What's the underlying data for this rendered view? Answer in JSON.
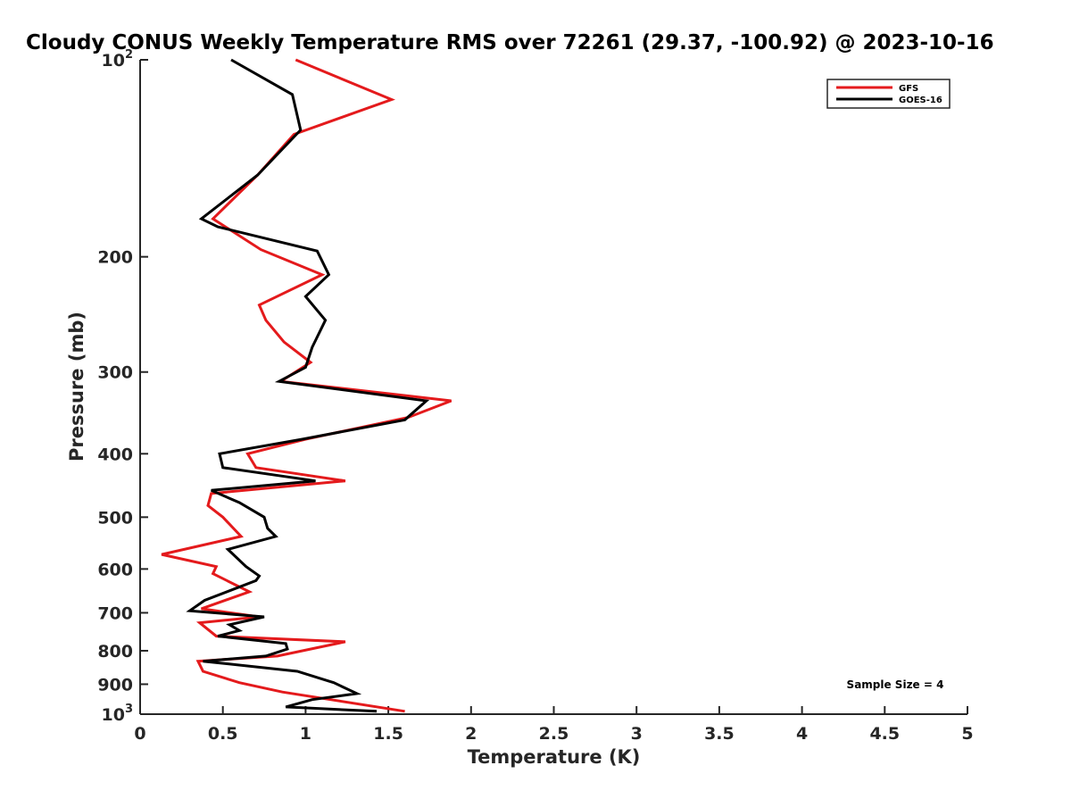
{
  "chart_data": {
    "type": "line",
    "title": "Cloudy CONUS Weekly Temperature RMS over 72261 (29.37, -100.92) @ 2023-10-16",
    "xlabel": "Temperature (K)",
    "ylabel": "Pressure (mb)",
    "xlim": [
      0,
      5
    ],
    "ylim": [
      100,
      1000
    ],
    "y_scale": "log",
    "y_direction": "reversed",
    "grid": false,
    "legend_position": "top-right",
    "x_ticks": [
      0,
      0.5,
      1,
      1.5,
      2,
      2.5,
      3,
      3.5,
      4,
      4.5,
      5
    ],
    "x_tick_labels": [
      "0",
      "0.5",
      "1",
      "1.5",
      "2",
      "2.5",
      "3",
      "3.5",
      "4",
      "4.5",
      "5"
    ],
    "y_ticks": [
      100,
      200,
      300,
      400,
      500,
      600,
      700,
      800,
      900,
      1000
    ],
    "y_tick_labels": [
      {
        "base": "10",
        "exp": "2"
      },
      {
        "base": "200",
        "exp": ""
      },
      {
        "base": "300",
        "exp": ""
      },
      {
        "base": "400",
        "exp": ""
      },
      {
        "base": "500",
        "exp": ""
      },
      {
        "base": "600",
        "exp": ""
      },
      {
        "base": "700",
        "exp": ""
      },
      {
        "base": "800",
        "exp": ""
      },
      {
        "base": "900",
        "exp": ""
      },
      {
        "base": "10",
        "exp": "3"
      }
    ],
    "annotation": "Sample Size = 4",
    "series": [
      {
        "name": "GFS",
        "color": "#e41a1c",
        "points": [
          [
            0.94,
            100
          ],
          [
            1.52,
            115
          ],
          [
            0.93,
            130
          ],
          [
            0.71,
            150
          ],
          [
            0.44,
            175
          ],
          [
            0.73,
            195
          ],
          [
            1.1,
            213
          ],
          [
            0.72,
            237
          ],
          [
            0.76,
            250
          ],
          [
            0.87,
            270
          ],
          [
            1.03,
            290
          ],
          [
            0.85,
            310
          ],
          [
            1.88,
            332
          ],
          [
            1.62,
            352
          ],
          [
            1.0,
            380
          ],
          [
            0.65,
            400
          ],
          [
            0.7,
            420
          ],
          [
            1.24,
            440
          ],
          [
            0.43,
            460
          ],
          [
            0.41,
            480
          ],
          [
            0.5,
            500
          ],
          [
            0.61,
            535
          ],
          [
            0.13,
            570
          ],
          [
            0.46,
            595
          ],
          [
            0.44,
            610
          ],
          [
            0.66,
            650
          ],
          [
            0.37,
            690
          ],
          [
            0.72,
            710
          ],
          [
            0.36,
            725
          ],
          [
            0.46,
            760
          ],
          [
            1.24,
            775
          ],
          [
            0.83,
            815
          ],
          [
            0.35,
            830
          ],
          [
            0.38,
            860
          ],
          [
            0.6,
            895
          ],
          [
            0.86,
            925
          ],
          [
            1.6,
            990
          ]
        ]
      },
      {
        "name": "GOES-16",
        "color": "#000000",
        "points": [
          [
            0.55,
            100
          ],
          [
            0.92,
            113
          ],
          [
            0.97,
            128
          ],
          [
            0.71,
            150
          ],
          [
            0.37,
            175
          ],
          [
            0.47,
            180
          ],
          [
            1.07,
            196
          ],
          [
            1.14,
            213
          ],
          [
            1.0,
            230
          ],
          [
            1.12,
            250
          ],
          [
            1.04,
            275
          ],
          [
            1.0,
            295
          ],
          [
            0.84,
            310
          ],
          [
            1.73,
            332
          ],
          [
            1.6,
            355
          ],
          [
            0.98,
            380
          ],
          [
            0.48,
            400
          ],
          [
            0.5,
            420
          ],
          [
            1.06,
            440
          ],
          [
            0.43,
            455
          ],
          [
            0.6,
            475
          ],
          [
            0.75,
            500
          ],
          [
            0.77,
            520
          ],
          [
            0.82,
            535
          ],
          [
            0.53,
            560
          ],
          [
            0.64,
            595
          ],
          [
            0.72,
            615
          ],
          [
            0.7,
            625
          ],
          [
            0.39,
            670
          ],
          [
            0.3,
            695
          ],
          [
            0.75,
            710
          ],
          [
            0.54,
            730
          ],
          [
            0.6,
            745
          ],
          [
            0.47,
            760
          ],
          [
            0.88,
            780
          ],
          [
            0.89,
            795
          ],
          [
            0.76,
            815
          ],
          [
            0.38,
            830
          ],
          [
            0.95,
            860
          ],
          [
            1.17,
            895
          ],
          [
            1.31,
            930
          ],
          [
            1.04,
            950
          ],
          [
            0.88,
            975
          ],
          [
            1.43,
            990
          ]
        ]
      }
    ]
  }
}
